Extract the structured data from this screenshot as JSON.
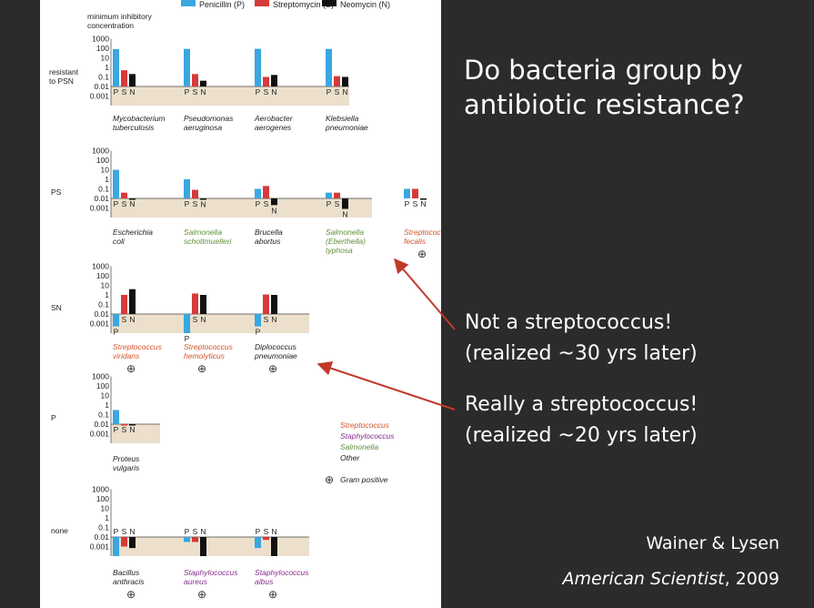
{
  "slide": {
    "title": "Do bacteria group by antibiotic resistance?",
    "note_1_line_1": "Not a streptococcus!",
    "note_1_line_2": "(realized ~30 yrs later)",
    "note_2_line_1": "Really a streptococcus!",
    "note_2_line_2": "(realized ~20 yrs later)",
    "credit_authors": "Wainer & Lysen",
    "credit_journal": "American Scientist",
    "credit_year": ", 2009"
  },
  "colors": {
    "background": "#2b2b2b",
    "penicillin": "#39a7e1",
    "streptomycin": "#d63a3a",
    "neomycin": "#111111",
    "panel_fill": "#ece0cc",
    "streptococcus_label": "#d2552c",
    "staphylococcus_label": "#8a2d8f",
    "salmonella_label": "#5e8f3a",
    "other_label": "#222222",
    "arrow": "#c0392b"
  },
  "chart_data": {
    "type": "bar",
    "scale": "log",
    "ylim": [
      0.001,
      1000
    ],
    "baseline": 0.1,
    "y_ticks": [
      "1000",
      "100",
      "10",
      "1",
      "0.1",
      "0.01",
      "0.001"
    ],
    "ylabel": "minimum inhibitory concentration",
    "legend": [
      "Penicillin (P)",
      "Streptomycin (S)",
      "Neomycin (N)"
    ],
    "legend_placement": "top",
    "bar_letters": [
      "P",
      "S",
      "N"
    ],
    "groups": [
      {
        "label": "resistant to PSN",
        "label_line_1": "resistant",
        "label_line_2": "to PSN",
        "bacteria": [
          {
            "line1": "Mycobacterium",
            "line2": "tuberculosis",
            "line3": "",
            "genus": "other",
            "gram_positive": false,
            "values": [
              800,
              5,
              2
            ]
          },
          {
            "line1": "Pseudomonas",
            "line2": "aeruginosa",
            "line3": "",
            "genus": "other",
            "gram_positive": false,
            "values": [
              850,
              2,
              0.4
            ]
          },
          {
            "line1": "Aerobacter",
            "line2": "aerogenes",
            "line3": "",
            "genus": "other",
            "gram_positive": false,
            "values": [
              870,
              1,
              1.6
            ]
          },
          {
            "line1": "Klebsiella",
            "line2": "pneumoniae",
            "line3": "",
            "genus": "other",
            "gram_positive": false,
            "values": [
              850,
              1.2,
              1
            ]
          }
        ]
      },
      {
        "label": "PS",
        "label_line_1": "PS",
        "label_line_2": "",
        "bacteria": [
          {
            "line1": "Escherichia",
            "line2": "coli",
            "line3": "",
            "genus": "other",
            "gram_positive": false,
            "values": [
              100,
              0.4,
              0.1
            ]
          },
          {
            "line1": "Salmonella",
            "line2": "schottmuelleri",
            "line3": "",
            "genus": "salmonella",
            "gram_positive": false,
            "values": [
              10,
              0.8,
              0.09
            ]
          },
          {
            "line1": "Brucella",
            "line2": "abortus",
            "line3": "",
            "genus": "other",
            "gram_positive": false,
            "values": [
              1,
              2,
              0.02
            ]
          },
          {
            "line1": "Salmonella",
            "line2": "(Eberthella)",
            "line3": "typhosa",
            "genus": "salmonella",
            "gram_positive": false,
            "values": [
              0.4,
              0.4,
              0.008
            ]
          },
          {
            "line1": "Streptococcus",
            "line2": "fecalis",
            "line3": "",
            "genus": "streptococcus",
            "gram_positive": true,
            "values": [
              1,
              1,
              0.1
            ]
          }
        ]
      },
      {
        "label": "SN",
        "label_line_1": "SN",
        "label_line_2": "",
        "bacteria": [
          {
            "line1": "Streptococcus",
            "line2": "viridans",
            "line3": "",
            "genus": "streptococcus",
            "gram_positive": true,
            "values": [
              0.005,
              10,
              40
            ]
          },
          {
            "line1": "Streptococcus",
            "line2": "hemolyticus",
            "line3": "",
            "genus": "streptococcus",
            "gram_positive": true,
            "values": [
              0.001,
              14,
              10
            ]
          },
          {
            "line1": "Diplococcus",
            "line2": "pneumoniae",
            "line3": "",
            "genus": "other",
            "gram_positive": true,
            "values": [
              0.005,
              11,
              10
            ]
          }
        ]
      },
      {
        "label": "P",
        "label_line_1": "P",
        "label_line_2": "",
        "bacteria": [
          {
            "line1": "Proteus",
            "line2": "vulgaris",
            "line3": "",
            "genus": "other",
            "gram_positive": false,
            "values": [
              3,
              0.1,
              0.1
            ]
          }
        ]
      },
      {
        "label": "none",
        "label_line_1": "none",
        "label_line_2": "",
        "bacteria": [
          {
            "line1": "Bacillus",
            "line2": "anthracis",
            "line3": "",
            "genus": "other",
            "gram_positive": true,
            "values": [
              0.001,
              0.01,
              0.007
            ]
          },
          {
            "line1": "Staphylococcus",
            "line2": "aureus",
            "line3": "",
            "genus": "staphylococcus",
            "gram_positive": true,
            "values": [
              0.03,
              0.03,
              0.001
            ]
          },
          {
            "line1": "Staphylococcus",
            "line2": "albus",
            "line3": "",
            "genus": "staphylococcus",
            "gram_positive": true,
            "values": [
              0.007,
              0.05,
              0.001
            ]
          }
        ]
      }
    ],
    "genus_legend": [
      {
        "label": "Streptococcus",
        "genus": "streptococcus"
      },
      {
        "label": "Staphylococcus",
        "genus": "staphylococcus"
      },
      {
        "label": "Salmonella",
        "genus": "salmonella"
      },
      {
        "label": "Other",
        "genus": "other"
      }
    ],
    "gram_symbol": "⊕",
    "gram_label": "Gram positive"
  }
}
